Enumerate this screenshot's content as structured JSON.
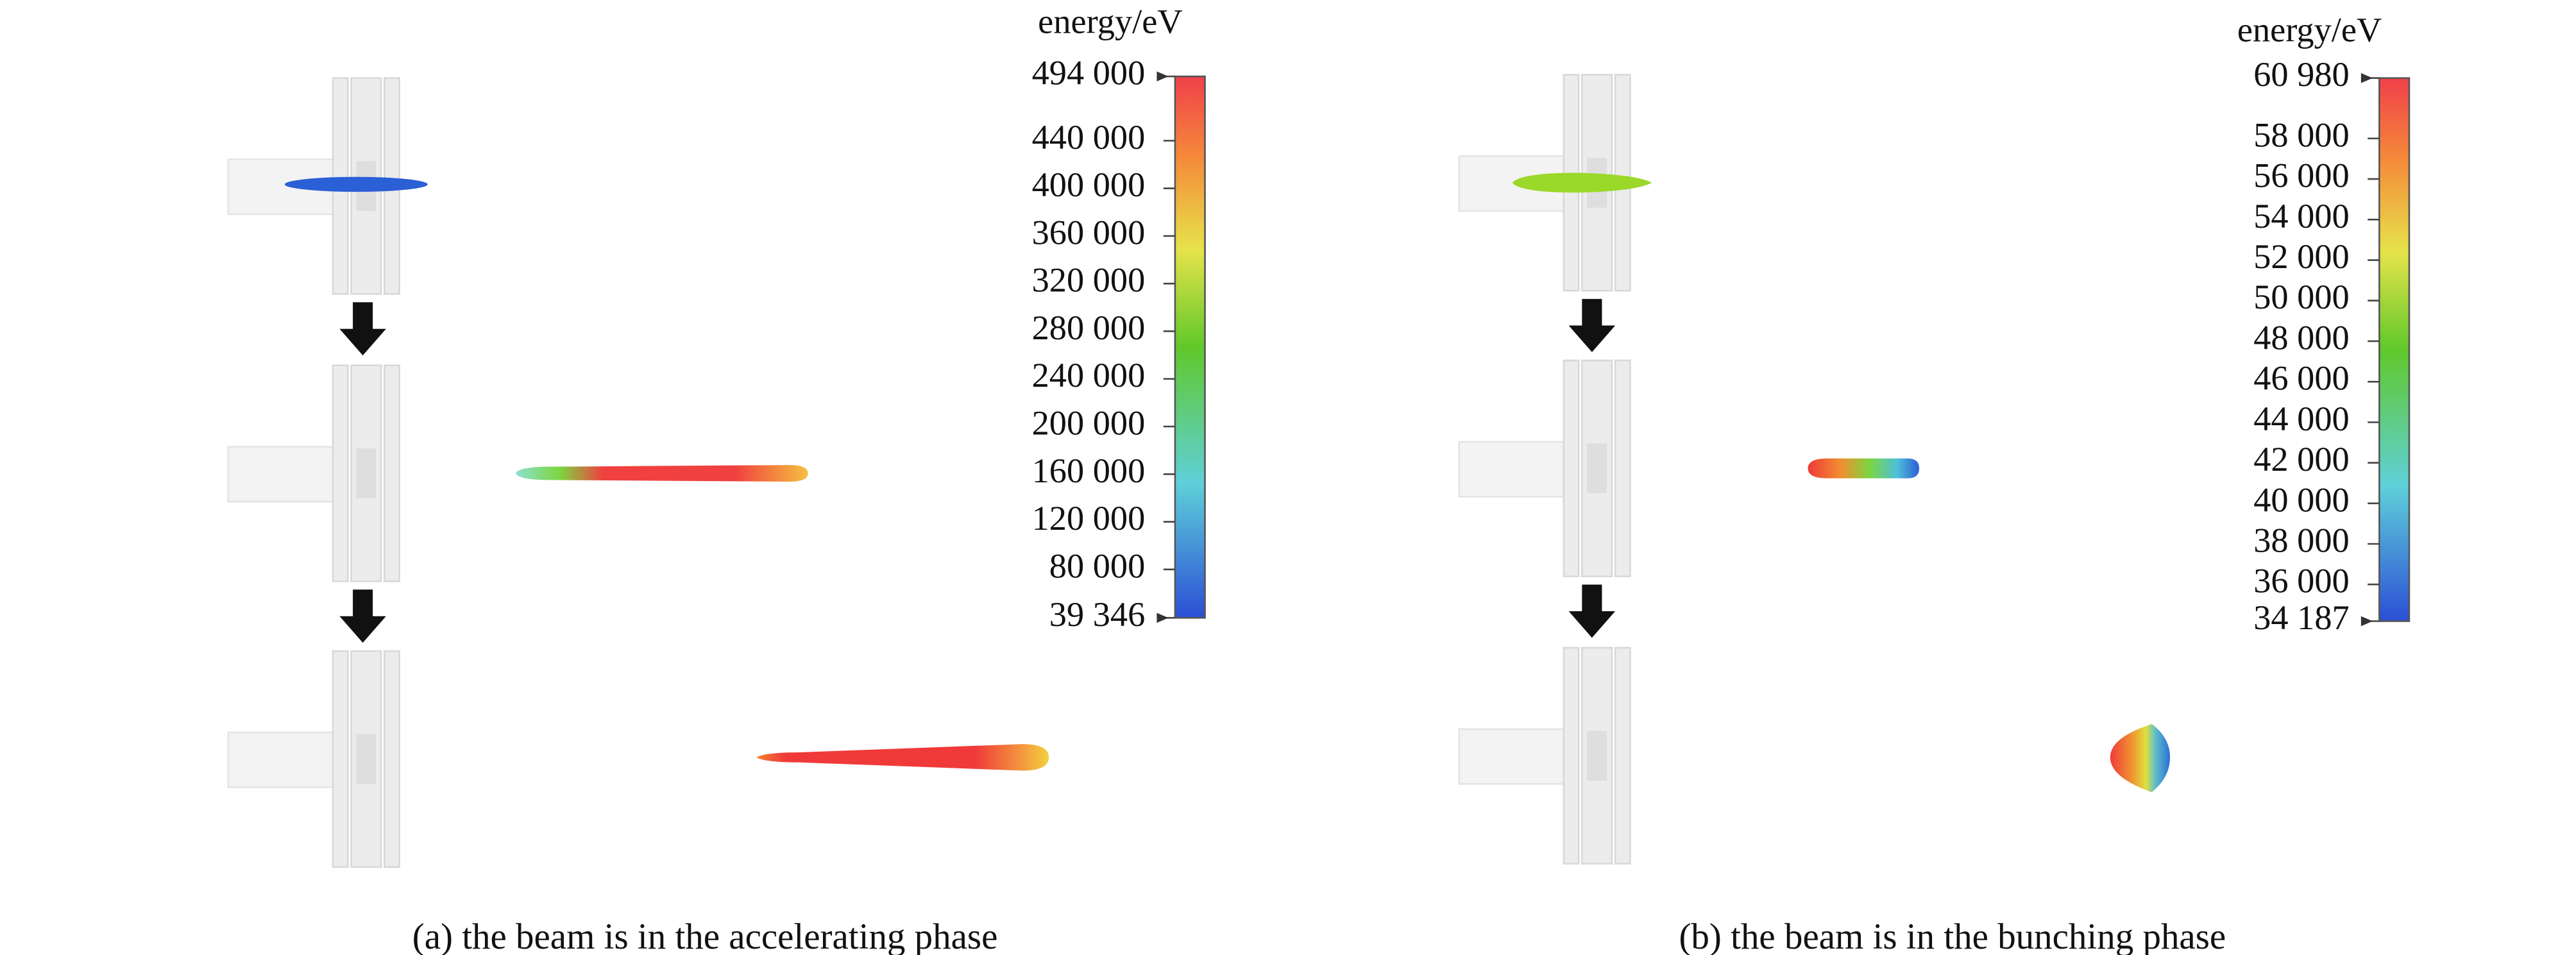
{
  "panels": [
    {
      "caption": "(a) the beam is in the accelerating phase",
      "colorbar": {
        "title": "energy/eV",
        "ticks": [
          {
            "value": 494000,
            "label": "494 000"
          },
          {
            "value": 440000,
            "label": "440 000"
          },
          {
            "value": 400000,
            "label": "400 000"
          },
          {
            "value": 360000,
            "label": "360 000"
          },
          {
            "value": 320000,
            "label": "320 000"
          },
          {
            "value": 280000,
            "label": "280 000"
          },
          {
            "value": 240000,
            "label": "240 000"
          },
          {
            "value": 200000,
            "label": "200 000"
          },
          {
            "value": 160000,
            "label": "160 000"
          },
          {
            "value": 120000,
            "label": "120 000"
          },
          {
            "value": 80000,
            "label": "80 000"
          },
          {
            "value": 39346,
            "label": "39 346"
          }
        ]
      }
    },
    {
      "caption": "(b) the beam is in the bunching phase",
      "colorbar": {
        "title": "energy/eV",
        "ticks": [
          {
            "value": 60980,
            "label": "60 980"
          },
          {
            "value": 58000,
            "label": "58 000"
          },
          {
            "value": 56000,
            "label": "56 000"
          },
          {
            "value": 54000,
            "label": "54 000"
          },
          {
            "value": 52000,
            "label": "52 000"
          },
          {
            "value": 50000,
            "label": "50 000"
          },
          {
            "value": 48000,
            "label": "48 000"
          },
          {
            "value": 46000,
            "label": "46 000"
          },
          {
            "value": 44000,
            "label": "44 000"
          },
          {
            "value": 42000,
            "label": "42 000"
          },
          {
            "value": 40000,
            "label": "40 000"
          },
          {
            "value": 38000,
            "label": "38 000"
          },
          {
            "value": 36000,
            "label": "36 000"
          },
          {
            "value": 34187,
            "label": "34 187"
          }
        ]
      }
    }
  ]
}
